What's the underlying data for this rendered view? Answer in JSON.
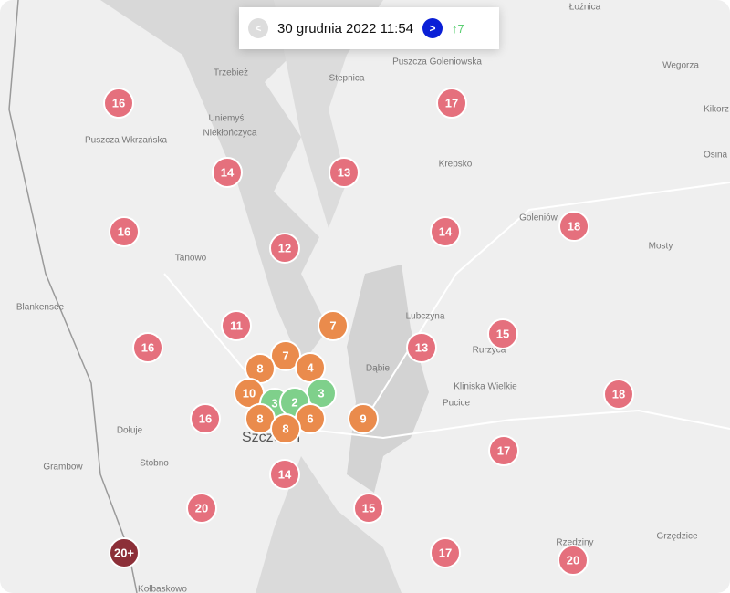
{
  "header": {
    "date": "30 grudnia 2022 11:54",
    "prev": "<",
    "next": ">",
    "change": "↑7"
  },
  "places": [
    "Łoźnica",
    "Trzebież",
    "Stepnica",
    "Puszcza Goleniowska",
    "Wegorza",
    "Kikorz",
    "Uniemyśl",
    "Niekłończyca",
    "Puszcza Wkrzańska",
    "Krepsko",
    "Osina",
    "Goleniów",
    "Mosty",
    "Tanowo",
    "Blankensee",
    "Lubczyna",
    "Rurzyca",
    "Dąbie",
    "Kliniska Wielkie",
    "Pucice",
    "Dołuje",
    "Szczecin",
    "Stobno",
    "Grambow",
    "Grzędzice",
    "Rzędziny",
    "Kołbaskowo"
  ],
  "markers": [
    {
      "label": "16",
      "color": "#e5707d"
    },
    {
      "label": "17",
      "color": "#e5707d"
    },
    {
      "label": "14",
      "color": "#e5707d"
    },
    {
      "label": "13",
      "color": "#e5707d"
    },
    {
      "label": "16",
      "color": "#e5707d"
    },
    {
      "label": "18",
      "color": "#e5707d"
    },
    {
      "label": "12",
      "color": "#e5707d"
    },
    {
      "label": "14",
      "color": "#e5707d"
    },
    {
      "label": "11",
      "color": "#e5707d"
    },
    {
      "label": "7",
      "color": "#ea8b4c"
    },
    {
      "label": "16",
      "color": "#e5707d"
    },
    {
      "label": "15",
      "color": "#e5707d"
    },
    {
      "label": "13",
      "color": "#e5707d"
    },
    {
      "label": "7",
      "color": "#ea8b4c"
    },
    {
      "label": "4",
      "color": "#ea8b4c"
    },
    {
      "label": "8",
      "color": "#ea8b4c"
    },
    {
      "label": "10",
      "color": "#ea8b4c"
    },
    {
      "label": "3",
      "color": "#7fd08b"
    },
    {
      "label": "3",
      "color": "#7fd08b"
    },
    {
      "label": "2",
      "color": "#7fd08b"
    },
    {
      "label": "16",
      "color": "#e5707d"
    },
    {
      "label": "8",
      "color": "#ea8b4c"
    },
    {
      "label": "6",
      "color": "#ea8b4c"
    },
    {
      "label": "9",
      "color": "#ea8b4c"
    },
    {
      "label": "8",
      "color": "#ea8b4c"
    },
    {
      "label": "18",
      "color": "#e5707d"
    },
    {
      "label": "17",
      "color": "#e5707d"
    },
    {
      "label": "14",
      "color": "#e5707d"
    },
    {
      "label": "20",
      "color": "#e5707d"
    },
    {
      "label": "15",
      "color": "#e5707d"
    },
    {
      "label": "20+",
      "color": "#8c2f38"
    },
    {
      "label": "17",
      "color": "#e5707d"
    },
    {
      "label": "20",
      "color": "#e5707d"
    }
  ]
}
